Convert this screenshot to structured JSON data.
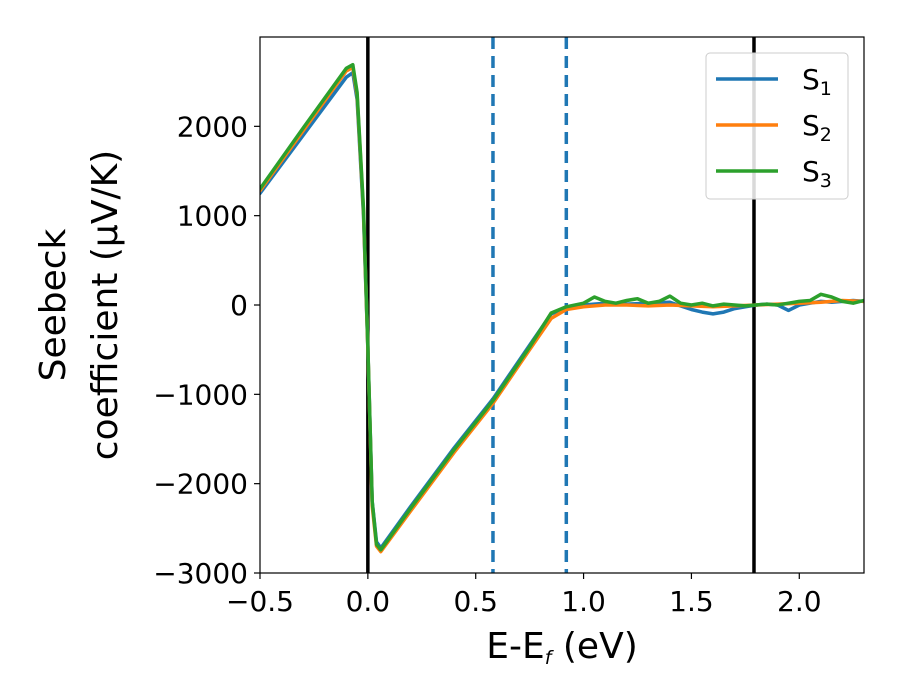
{
  "chart_data": {
    "type": "line",
    "title": "",
    "xlabel": {
      "main": "E-E",
      "sub": "f",
      "unit": " (eV)"
    },
    "ylabel": {
      "line1": "Seebeck",
      "line2": "coefficient  (μV/K)"
    },
    "xlim": [
      -0.5,
      2.3
    ],
    "ylim": [
      -3000,
      3000
    ],
    "xticks": [
      -0.5,
      0.0,
      0.5,
      1.0,
      1.5,
      2.0
    ],
    "xtick_labels": [
      "−0.5",
      "0.0",
      "0.5",
      "1.0",
      "1.5",
      "2.0"
    ],
    "yticks": [
      -3000,
      -2000,
      -1000,
      0,
      1000,
      2000
    ],
    "ytick_labels": [
      "−3000",
      "−2000",
      "−1000",
      "0",
      "1000",
      "2000"
    ],
    "grid": false,
    "legend_position": "top-right",
    "series": [
      {
        "name": "S",
        "sub": "1",
        "color": "#1f77b4",
        "x": [
          -0.5,
          -0.3,
          -0.1,
          -0.07,
          -0.05,
          -0.02,
          0.0,
          0.02,
          0.04,
          0.06,
          0.2,
          0.4,
          0.58,
          0.75,
          0.85,
          0.92,
          1.0,
          1.1,
          1.2,
          1.3,
          1.4,
          1.5,
          1.55,
          1.6,
          1.65,
          1.7,
          1.75,
          1.8,
          1.85,
          1.9,
          1.95,
          2.0,
          2.05,
          2.1,
          2.15,
          2.2,
          2.25,
          2.3
        ],
        "y": [
          1250,
          1900,
          2550,
          2600,
          2300,
          1000,
          -500,
          -2200,
          -2650,
          -2720,
          -2250,
          -1600,
          -1050,
          -450,
          -100,
          -30,
          0,
          20,
          10,
          20,
          30,
          -50,
          -80,
          -100,
          -80,
          -40,
          -20,
          0,
          10,
          0,
          -60,
          0,
          20,
          40,
          30,
          40,
          50,
          40
        ]
      },
      {
        "name": "S",
        "sub": "2",
        "color": "#ff7f0e",
        "x": [
          -0.5,
          -0.3,
          -0.1,
          -0.07,
          -0.05,
          -0.02,
          0.0,
          0.02,
          0.04,
          0.06,
          0.2,
          0.4,
          0.58,
          0.75,
          0.85,
          0.92,
          1.0,
          1.1,
          1.2,
          1.3,
          1.4,
          1.5,
          1.6,
          1.7,
          1.8,
          1.9,
          2.0,
          2.1,
          2.2,
          2.3
        ],
        "y": [
          1280,
          1950,
          2620,
          2660,
          2350,
          1050,
          -500,
          -2250,
          -2700,
          -2760,
          -2300,
          -1650,
          -1100,
          -500,
          -150,
          -50,
          -20,
          0,
          0,
          -10,
          0,
          -10,
          -20,
          -10,
          0,
          10,
          20,
          30,
          50,
          40
        ]
      },
      {
        "name": "S",
        "sub": "3",
        "color": "#2ca02c",
        "x": [
          -0.5,
          -0.3,
          -0.1,
          -0.07,
          -0.05,
          -0.02,
          0.0,
          0.02,
          0.04,
          0.06,
          0.2,
          0.4,
          0.58,
          0.75,
          0.85,
          0.92,
          1.0,
          1.05,
          1.1,
          1.15,
          1.2,
          1.25,
          1.3,
          1.35,
          1.4,
          1.45,
          1.5,
          1.55,
          1.6,
          1.65,
          1.7,
          1.75,
          1.8,
          1.85,
          1.9,
          1.95,
          2.0,
          2.05,
          2.1,
          2.15,
          2.2,
          2.25,
          2.3
        ],
        "y": [
          1300,
          1980,
          2650,
          2690,
          2380,
          1080,
          -480,
          -2200,
          -2680,
          -2740,
          -2270,
          -1620,
          -1070,
          -470,
          -90,
          -20,
          20,
          90,
          40,
          20,
          50,
          70,
          20,
          40,
          100,
          20,
          0,
          20,
          -10,
          10,
          0,
          -10,
          0,
          10,
          0,
          20,
          40,
          50,
          120,
          90,
          40,
          20,
          50
        ]
      }
    ],
    "vlines": [
      {
        "x": 0.0,
        "style": "solid",
        "color": "#000000"
      },
      {
        "x": 1.79,
        "style": "solid",
        "color": "#000000"
      },
      {
        "x": 0.58,
        "style": "dashed",
        "color": "#1f77b4"
      },
      {
        "x": 0.92,
        "style": "dashed",
        "color": "#1f77b4"
      }
    ]
  }
}
